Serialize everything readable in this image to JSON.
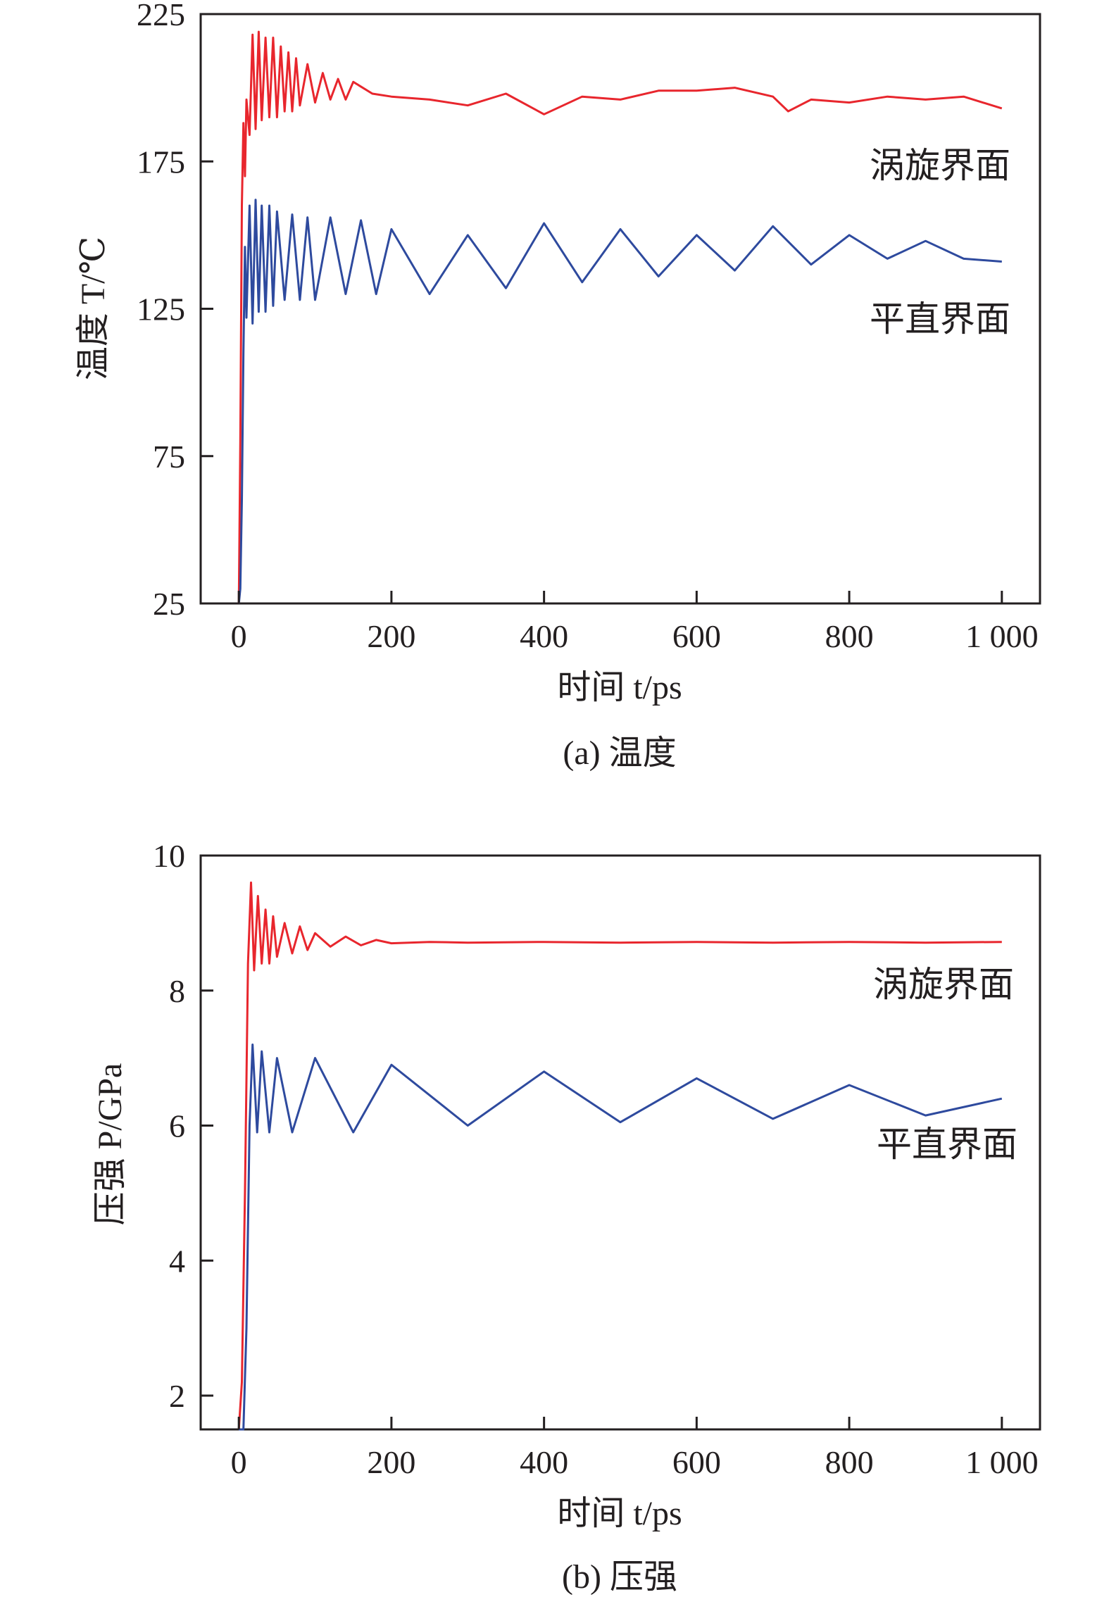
{
  "chart_data": [
    {
      "type": "line",
      "caption": "(a) 温度",
      "xlabel": "时间 t/ps",
      "ylabel": "温度 T/℃",
      "xlim": [
        -50,
        1050
      ],
      "ylim": [
        25,
        225
      ],
      "xticks": [
        0,
        200,
        400,
        600,
        800,
        1000
      ],
      "xtick_labels": [
        "0",
        "200",
        "400",
        "600",
        "800",
        "1 000"
      ],
      "yticks": [
        25,
        75,
        125,
        175,
        225
      ],
      "ytick_labels": [
        "25",
        "75",
        "125",
        "175",
        "225"
      ],
      "series": [
        {
          "name": "涡旋界面",
          "color": "#e8262d",
          "x": [
            0,
            2,
            4,
            6,
            8,
            10,
            14,
            18,
            22,
            26,
            30,
            35,
            40,
            45,
            50,
            55,
            60,
            65,
            70,
            75,
            80,
            90,
            100,
            110,
            120,
            130,
            140,
            150,
            175,
            200,
            250,
            300,
            350,
            400,
            450,
            500,
            550,
            600,
            650,
            700,
            720,
            750,
            800,
            850,
            900,
            950,
            1000
          ],
          "y": [
            25,
            80,
            160,
            188,
            170,
            196,
            184,
            218,
            186,
            219,
            189,
            217,
            190,
            217,
            190,
            214,
            192,
            212,
            192,
            210,
            194,
            208,
            195,
            205,
            196,
            203,
            196,
            202,
            198,
            197,
            196,
            194,
            198,
            191,
            197,
            196,
            199,
            199,
            200,
            197,
            192,
            196,
            195,
            197,
            196,
            197,
            193
          ]
        },
        {
          "name": "平直界面",
          "color": "#2e4a9e",
          "x": [
            0,
            2,
            4,
            6,
            8,
            10,
            14,
            18,
            22,
            26,
            30,
            35,
            40,
            45,
            50,
            60,
            70,
            80,
            90,
            100,
            120,
            140,
            160,
            180,
            200,
            250,
            300,
            350,
            400,
            450,
            500,
            550,
            600,
            650,
            700,
            750,
            800,
            850,
            900,
            950,
            1000
          ],
          "y": [
            25,
            30,
            60,
            110,
            146,
            122,
            160,
            120,
            162,
            124,
            160,
            124,
            160,
            126,
            158,
            128,
            157,
            128,
            156,
            128,
            156,
            130,
            155,
            130,
            152,
            130,
            150,
            132,
            154,
            134,
            152,
            136,
            150,
            138,
            153,
            140,
            150,
            142,
            148,
            142,
            141
          ]
        }
      ]
    },
    {
      "type": "line",
      "caption": "(b) 压强",
      "xlabel": "时间 t/ps",
      "ylabel": "压强 P/GPa",
      "xlim": [
        -50,
        1050
      ],
      "ylim": [
        1.5,
        10
      ],
      "xticks": [
        0,
        200,
        400,
        600,
        800,
        1000
      ],
      "xtick_labels": [
        "0",
        "200",
        "400",
        "600",
        "800",
        "1 000"
      ],
      "yticks": [
        2,
        4,
        6,
        8,
        10
      ],
      "ytick_labels": [
        "2",
        "4",
        "6",
        "8",
        "10"
      ],
      "series": [
        {
          "name": "涡旋界面",
          "color": "#e8262d",
          "x": [
            0,
            4,
            8,
            12,
            16,
            20,
            25,
            30,
            35,
            40,
            45,
            50,
            60,
            70,
            80,
            90,
            100,
            120,
            140,
            160,
            180,
            200,
            250,
            300,
            400,
            500,
            600,
            700,
            800,
            900,
            1000
          ],
          "y": [
            1.5,
            2.2,
            5.0,
            8.4,
            9.6,
            8.3,
            9.4,
            8.4,
            9.2,
            8.4,
            9.1,
            8.5,
            9.0,
            8.55,
            8.95,
            8.6,
            8.85,
            8.65,
            8.8,
            8.67,
            8.75,
            8.7,
            8.72,
            8.71,
            8.72,
            8.71,
            8.72,
            8.71,
            8.72,
            8.71,
            8.72
          ]
        },
        {
          "name": "平直界面",
          "color": "#2e4a9e",
          "x": [
            0,
            6,
            10,
            14,
            18,
            24,
            30,
            40,
            50,
            70,
            100,
            150,
            200,
            300,
            400,
            500,
            600,
            700,
            800,
            900,
            1000
          ],
          "y": [
            1.5,
            1.5,
            3.0,
            6.0,
            7.2,
            5.9,
            7.1,
            5.9,
            7.0,
            5.9,
            7.0,
            5.9,
            6.9,
            6.0,
            6.8,
            6.05,
            6.7,
            6.1,
            6.6,
            6.15,
            6.4
          ]
        }
      ]
    }
  ]
}
